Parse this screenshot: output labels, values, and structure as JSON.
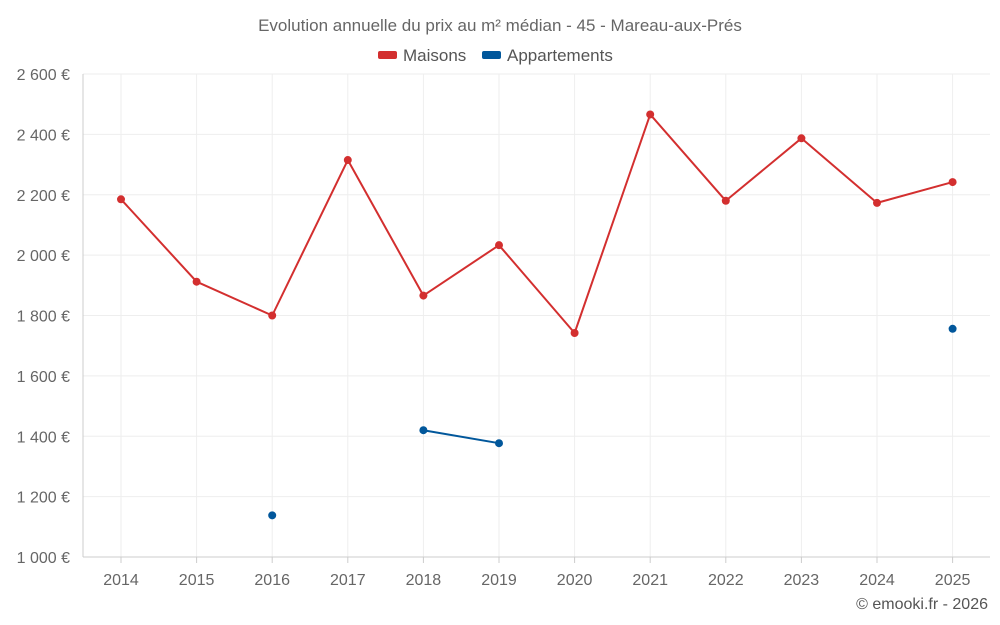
{
  "colors": {
    "maisons": "#d32f2f",
    "appartements": "#01579b"
  },
  "chart_data": {
    "type": "line",
    "title": "Evolution annuelle du prix au m² médian - 45 - Mareau-aux-Prés",
    "categories": [
      "2014",
      "2015",
      "2016",
      "2017",
      "2018",
      "2019",
      "2020",
      "2021",
      "2022",
      "2023",
      "2024",
      "2025"
    ],
    "series": [
      {
        "name": "Maisons",
        "color": "#d32f2f",
        "values": [
          2185,
          1912,
          1800,
          2315,
          1866,
          2033,
          1742,
          2466,
          2180,
          2387,
          2173,
          2242
        ]
      },
      {
        "name": "Appartements",
        "color": "#01579b",
        "values": [
          null,
          null,
          1138,
          null,
          1420,
          1377,
          null,
          null,
          null,
          null,
          null,
          1756
        ]
      }
    ],
    "ylim": [
      1000,
      2600
    ],
    "yticks": [
      1000,
      1200,
      1400,
      1600,
      1800,
      2000,
      2200,
      2400,
      2600
    ],
    "ytick_labels": [
      "1 000 €",
      "1 200 €",
      "1 400 €",
      "1 600 €",
      "1 800 €",
      "2 000 €",
      "2 200 €",
      "2 400 €",
      "2 600 €"
    ],
    "grid": true,
    "legend_position": "top-center"
  },
  "credit": "© emooki.fr - 2026"
}
